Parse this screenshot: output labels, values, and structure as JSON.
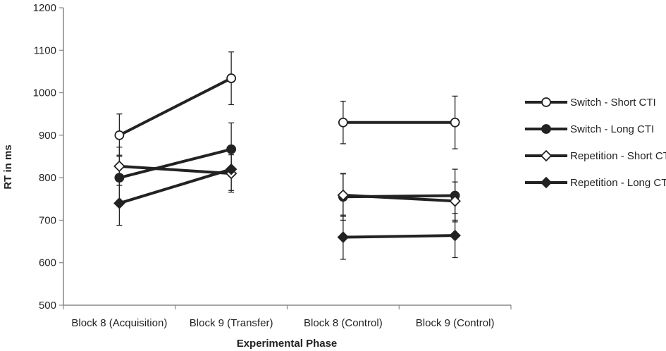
{
  "chart_data": {
    "type": "line",
    "xlabel": "Experimental Phase",
    "ylabel": "RT in ms",
    "ylim": [
      500,
      1200
    ],
    "yticks": [
      500,
      600,
      700,
      800,
      900,
      1000,
      1100,
      1200
    ],
    "grid": false,
    "legend_position": "right",
    "categories": [
      "Block 8 (Acquisition)",
      "Block 9 (Transfer)",
      "Block 8 (Control)",
      "Block 9 (Control)"
    ],
    "segments": [
      [
        0,
        1
      ],
      [
        2,
        3
      ]
    ],
    "series": [
      {
        "name": "Switch - Short CTI",
        "marker": "circle-open",
        "values": [
          900,
          1034,
          930,
          930
        ],
        "error": [
          50,
          62,
          50,
          62
        ]
      },
      {
        "name": "Switch - Long CTI",
        "marker": "circle-filled",
        "values": [
          800,
          867,
          755,
          758
        ],
        "error": [
          53,
          62,
          55,
          62
        ]
      },
      {
        "name": "Repetition - Short CTI",
        "marker": "diamond-open",
        "values": [
          827,
          810,
          759,
          745
        ],
        "error": [
          45,
          44,
          50,
          45
        ]
      },
      {
        "name": "Repetition - Long CTI",
        "marker": "diamond-filled",
        "values": [
          740,
          820,
          660,
          664
        ],
        "error": [
          52,
          50,
          52,
          52
        ]
      }
    ]
  },
  "colors": {
    "line": "#222222",
    "open_fill": "#ffffff",
    "axis": "#888888"
  }
}
